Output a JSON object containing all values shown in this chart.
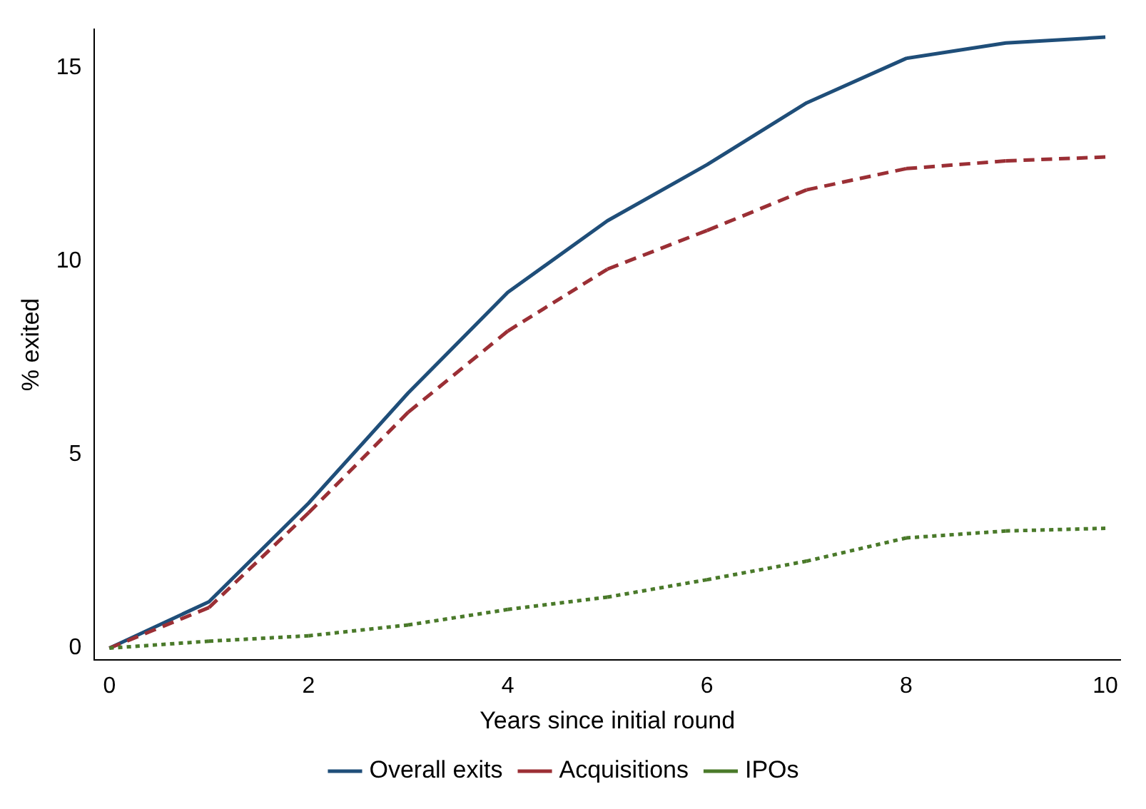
{
  "chart_data": {
    "type": "line",
    "xlabel": "Years since initial round",
    "ylabel": "% exited",
    "x": [
      0,
      1,
      2,
      3,
      4,
      5,
      6,
      7,
      8,
      9,
      10
    ],
    "xlim": [
      -0.15,
      10.15
    ],
    "xticks": [
      0,
      2,
      4,
      6,
      8,
      10
    ],
    "ylim": [
      -0.3,
      16
    ],
    "yticks": [
      0,
      5,
      10,
      15
    ],
    "grid": false,
    "legend": "bottom",
    "marker": "none",
    "series": [
      {
        "name": "Overall exits",
        "color": "#1f4e79",
        "line_style": "solid",
        "values": [
          0,
          1.2,
          3.75,
          6.6,
          9.2,
          11.05,
          12.5,
          14.1,
          15.25,
          15.65,
          15.8
        ]
      },
      {
        "name": "Acquisitions",
        "color": "#9b2f35",
        "line_style": "dashed",
        "values": [
          0,
          1.05,
          3.5,
          6.1,
          8.2,
          9.8,
          10.8,
          11.85,
          12.4,
          12.6,
          12.7
        ]
      },
      {
        "name": "IPOs",
        "color": "#4a7a2a",
        "line_style": "dotted",
        "values": [
          0,
          0.18,
          0.32,
          0.6,
          1.0,
          1.32,
          1.77,
          2.25,
          2.85,
          3.03,
          3.1
        ]
      }
    ]
  }
}
